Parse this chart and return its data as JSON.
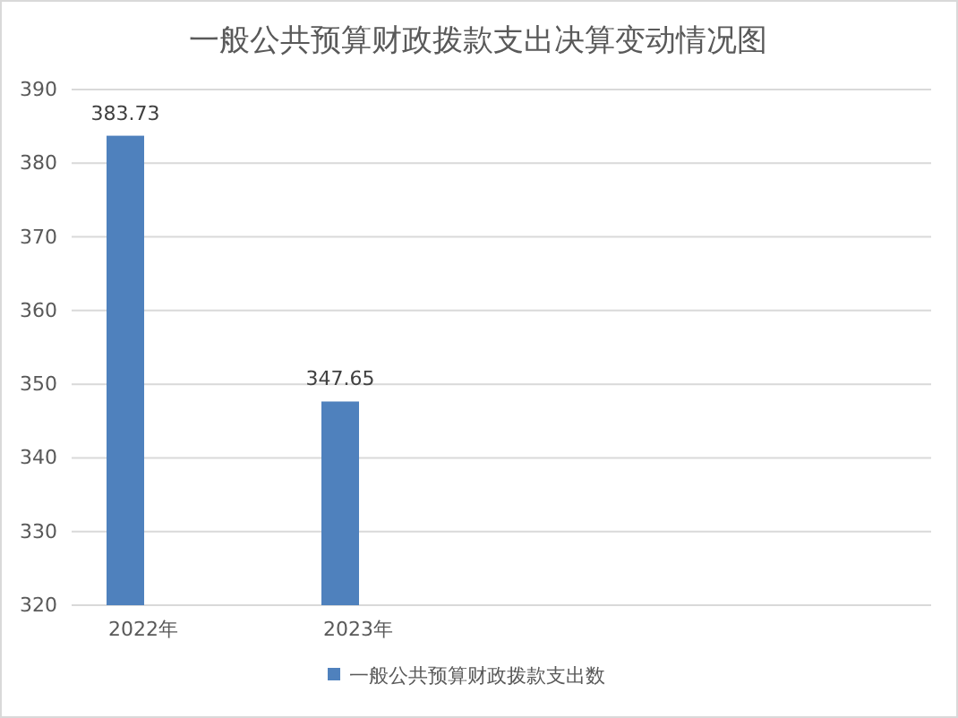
{
  "chart_data": {
    "type": "bar",
    "title": "一般公共预算财政拨款支出决算变动情况图",
    "categories": [
      "2022年",
      "2023年",
      null,
      null
    ],
    "series": [
      {
        "name": "一般公共预算财政拨款支出数",
        "color": "#4f81bd",
        "values": [
          383.73,
          347.65,
          null,
          null
        ]
      }
    ],
    "ylim": [
      320,
      390
    ],
    "yticks": [
      320,
      330,
      340,
      350,
      360,
      370,
      380,
      390
    ],
    "grid": "y",
    "legend": "bottom",
    "data_labels": true
  }
}
